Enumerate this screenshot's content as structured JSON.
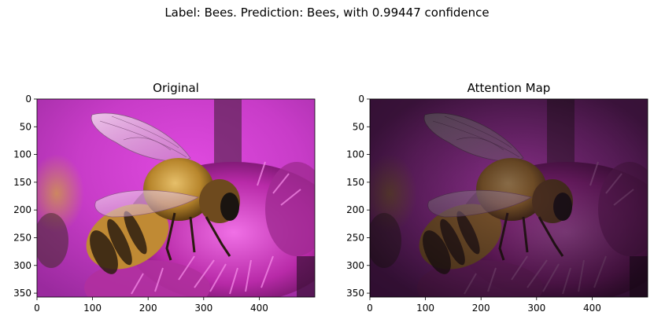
{
  "figure": {
    "suptitle": "Label: Bees. Prediction: Bees, with 0.99447 confidence"
  },
  "panels": [
    {
      "title": "Original",
      "image_subject": "bee-on-pink-flower-photo",
      "x_ticks": [
        "0",
        "100",
        "200",
        "300",
        "400"
      ],
      "y_ticks": [
        "0",
        "50",
        "100",
        "150",
        "200",
        "250",
        "300",
        "350"
      ]
    },
    {
      "title": "Attention Map",
      "image_subject": "bee-on-pink-flower-attention-overlay",
      "x_ticks": [
        "0",
        "100",
        "200",
        "300",
        "400"
      ],
      "y_ticks": [
        "0",
        "50",
        "100",
        "150",
        "200",
        "250",
        "300",
        "350"
      ]
    }
  ],
  "image_extent": {
    "x_max": 500,
    "y_max": 357
  },
  "colors": {
    "flower_magenta": "#c83cc8",
    "background_pink": "#d23ad2",
    "bee_amber": "#b8862c",
    "attention_dim": "#3a1a3a"
  }
}
